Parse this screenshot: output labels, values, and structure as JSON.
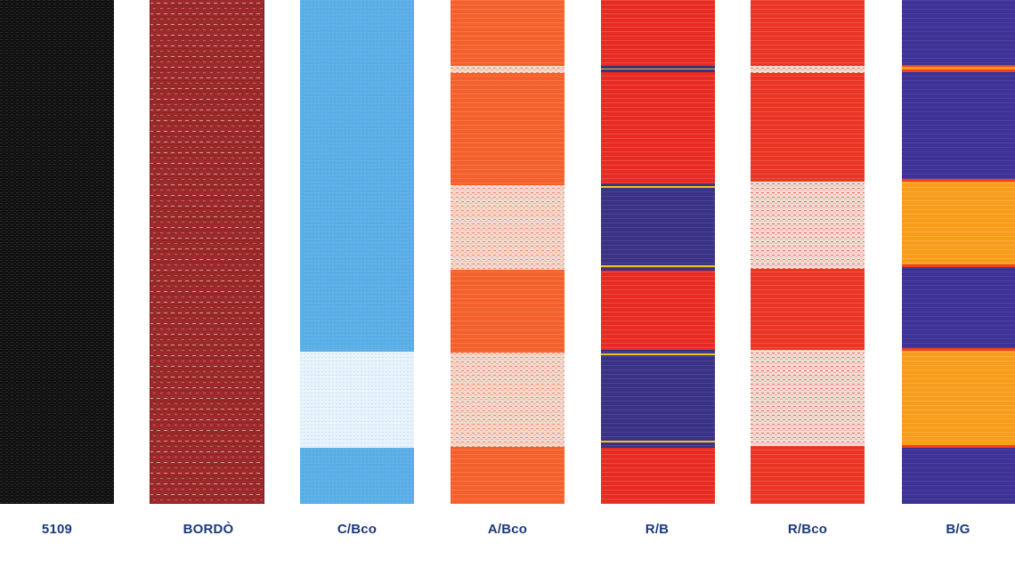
{
  "swatches": [
    {
      "code": "5109",
      "colors": {
        "base": "#111111",
        "texture": "#2a2a2a"
      }
    },
    {
      "code": "BORDÒ",
      "colors": {
        "base": "#9c2a2b",
        "texture": "#c9a0a0"
      }
    },
    {
      "code": "C/Bco",
      "colors": {
        "base": "#5aaee6",
        "stripe": "#e8f3fb"
      }
    },
    {
      "code": "A/Bco",
      "colors": {
        "base": "#f4602b",
        "stripe": "#f1d9cf"
      }
    },
    {
      "code": "R/B",
      "colors": {
        "base": "#e72a22",
        "stripe": "#3a3384",
        "edge": "#f3c21a"
      }
    },
    {
      "code": "R/Bco",
      "colors": {
        "base": "#ea3524",
        "stripe": "#f1dcd6"
      }
    },
    {
      "code": "B/G",
      "colors": {
        "base": "#3d3392",
        "stripe": "#f79d1b",
        "edge": "#f0401f"
      }
    }
  ]
}
